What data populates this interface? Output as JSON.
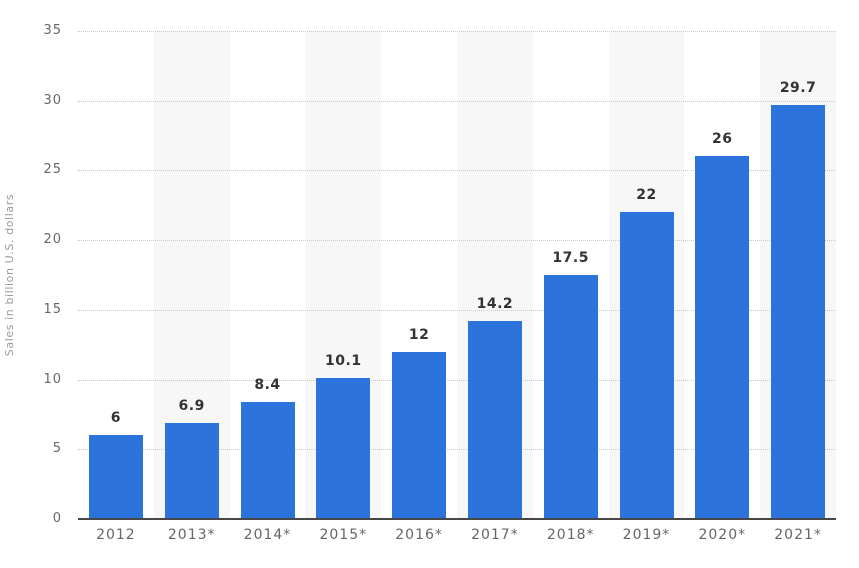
{
  "chart_data": {
    "type": "bar",
    "categories": [
      "2012",
      "2013*",
      "2014*",
      "2015*",
      "2016*",
      "2017*",
      "2018*",
      "2019*",
      "2020*",
      "2021*"
    ],
    "values": [
      6,
      6.9,
      8.4,
      10.1,
      12,
      14.2,
      17.5,
      22,
      26,
      29.7
    ],
    "value_labels": [
      "6",
      "6.9",
      "8.4",
      "10.1",
      "12",
      "14.2",
      "17.5",
      "22",
      "26",
      "29.7"
    ],
    "title": "",
    "xlabel": "",
    "ylabel": "Sales in billion U.S. dollars",
    "ylim": [
      0,
      35
    ],
    "yticks": [
      0,
      5,
      10,
      15,
      20,
      25,
      30,
      35
    ],
    "grid": "horizontal-dotted",
    "legend_position": "none",
    "colors": {
      "bar": "#2c74dc",
      "column_band": "#f7f7f7",
      "gridline": "#c9c9c9",
      "axis_line": "#474747",
      "tick_label": "#666666",
      "value_label": "#333333",
      "axis_title": "#9b9b9b",
      "background": "#ffffff"
    }
  }
}
